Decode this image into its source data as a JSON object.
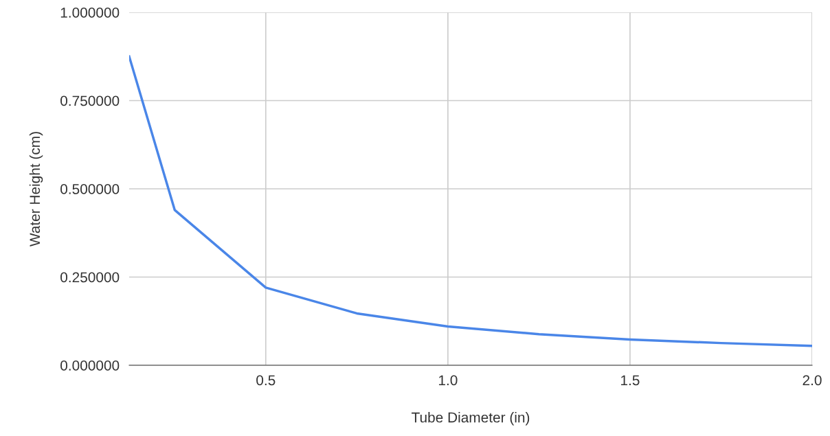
{
  "chart_data": {
    "type": "line",
    "xlabel": "Tube Diameter (in)",
    "ylabel": "Water Height (cm)",
    "x": [
      0.125,
      0.25,
      0.5,
      0.75,
      1.0,
      1.25,
      1.5,
      1.75,
      2.0
    ],
    "series": [
      {
        "color": "#4a86e8",
        "values": [
          0.875,
          0.44,
          0.22,
          0.147,
          0.11,
          0.088,
          0.073,
          0.063,
          0.055
        ]
      }
    ],
    "xlim": [
      0.125,
      2.0
    ],
    "xticks": [
      0.5,
      {
        "value": 1.0,
        "label": "1.0"
      },
      1.5,
      {
        "value": 2.0,
        "label": "2.0"
      }
    ],
    "ylim": [
      0,
      1
    ],
    "yticks": [
      {
        "value": 0,
        "label": "0.000000"
      },
      {
        "value": 0.25,
        "label": "0.250000"
      },
      {
        "value": 0.5,
        "label": "0.500000"
      },
      {
        "value": 0.75,
        "label": "0.750000"
      },
      {
        "value": 1,
        "label": "1.000000"
      }
    ],
    "grid": true,
    "marker": "none",
    "line_style": "solid"
  }
}
